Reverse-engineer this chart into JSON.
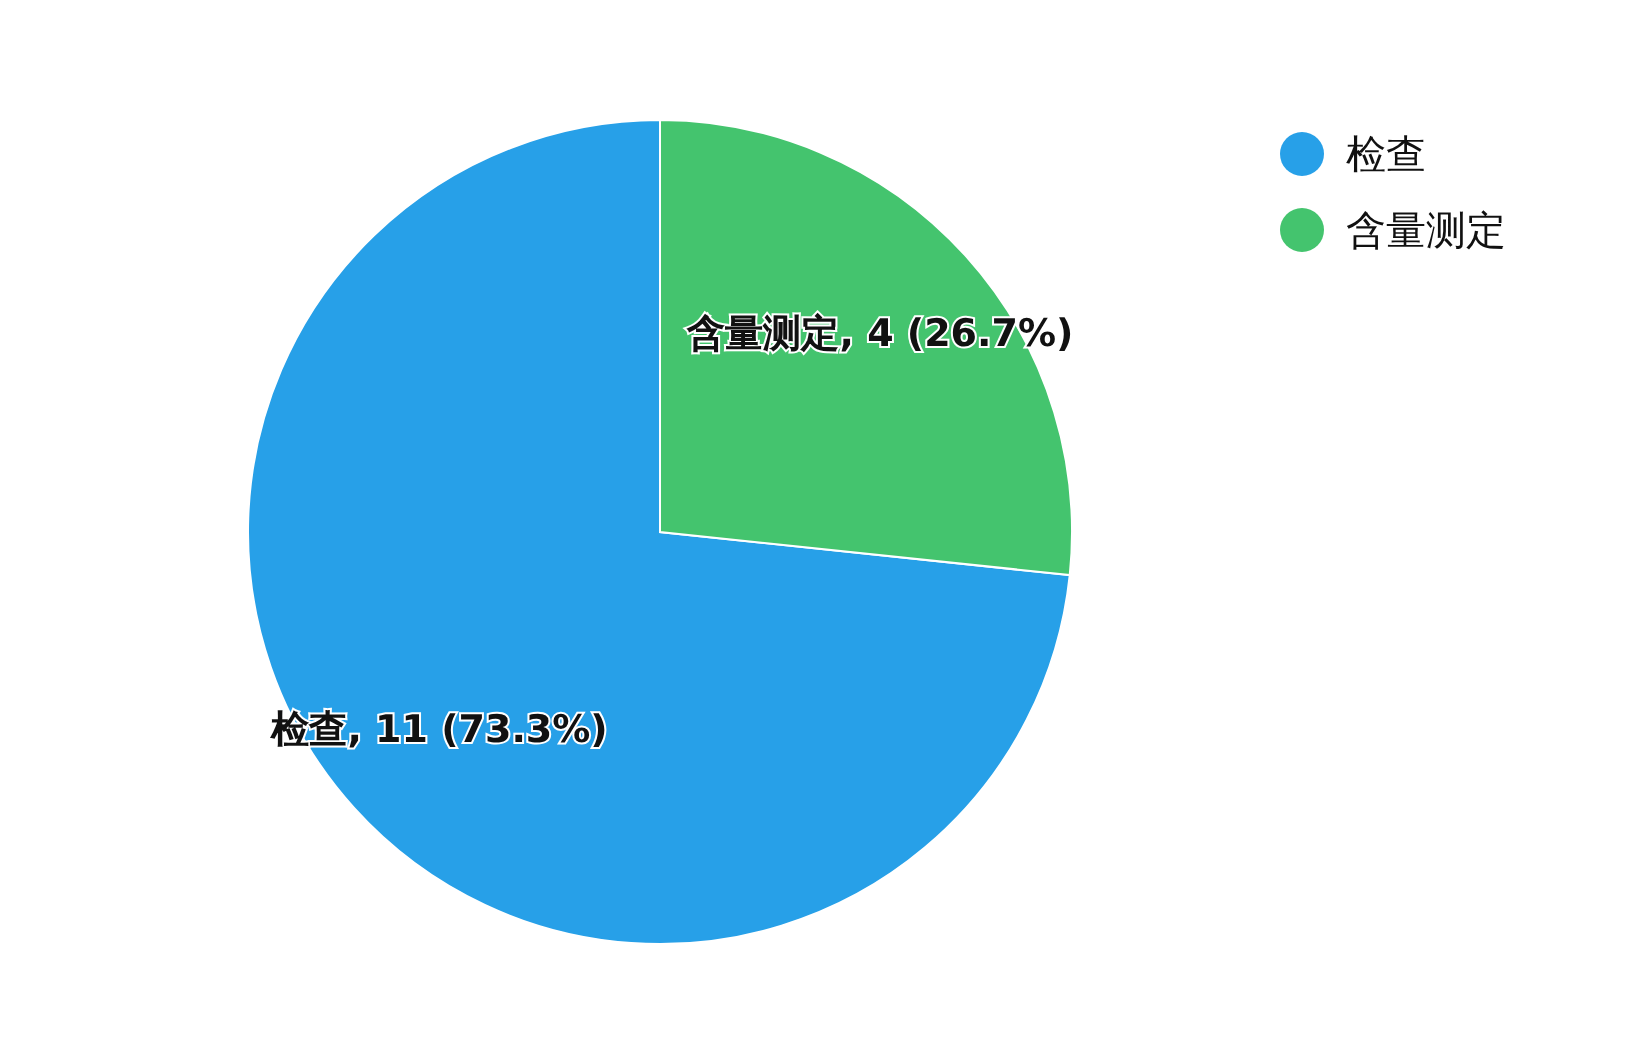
{
  "chart_data": {
    "type": "pie",
    "categories": [
      "检查",
      "含量测定"
    ],
    "values": [
      11,
      4
    ],
    "colors": [
      "#27a0e8",
      "#44c46e"
    ],
    "value_labels": [
      ", 11 (73.3%)",
      ", 4 (26.7%)"
    ],
    "legend": "top right"
  }
}
